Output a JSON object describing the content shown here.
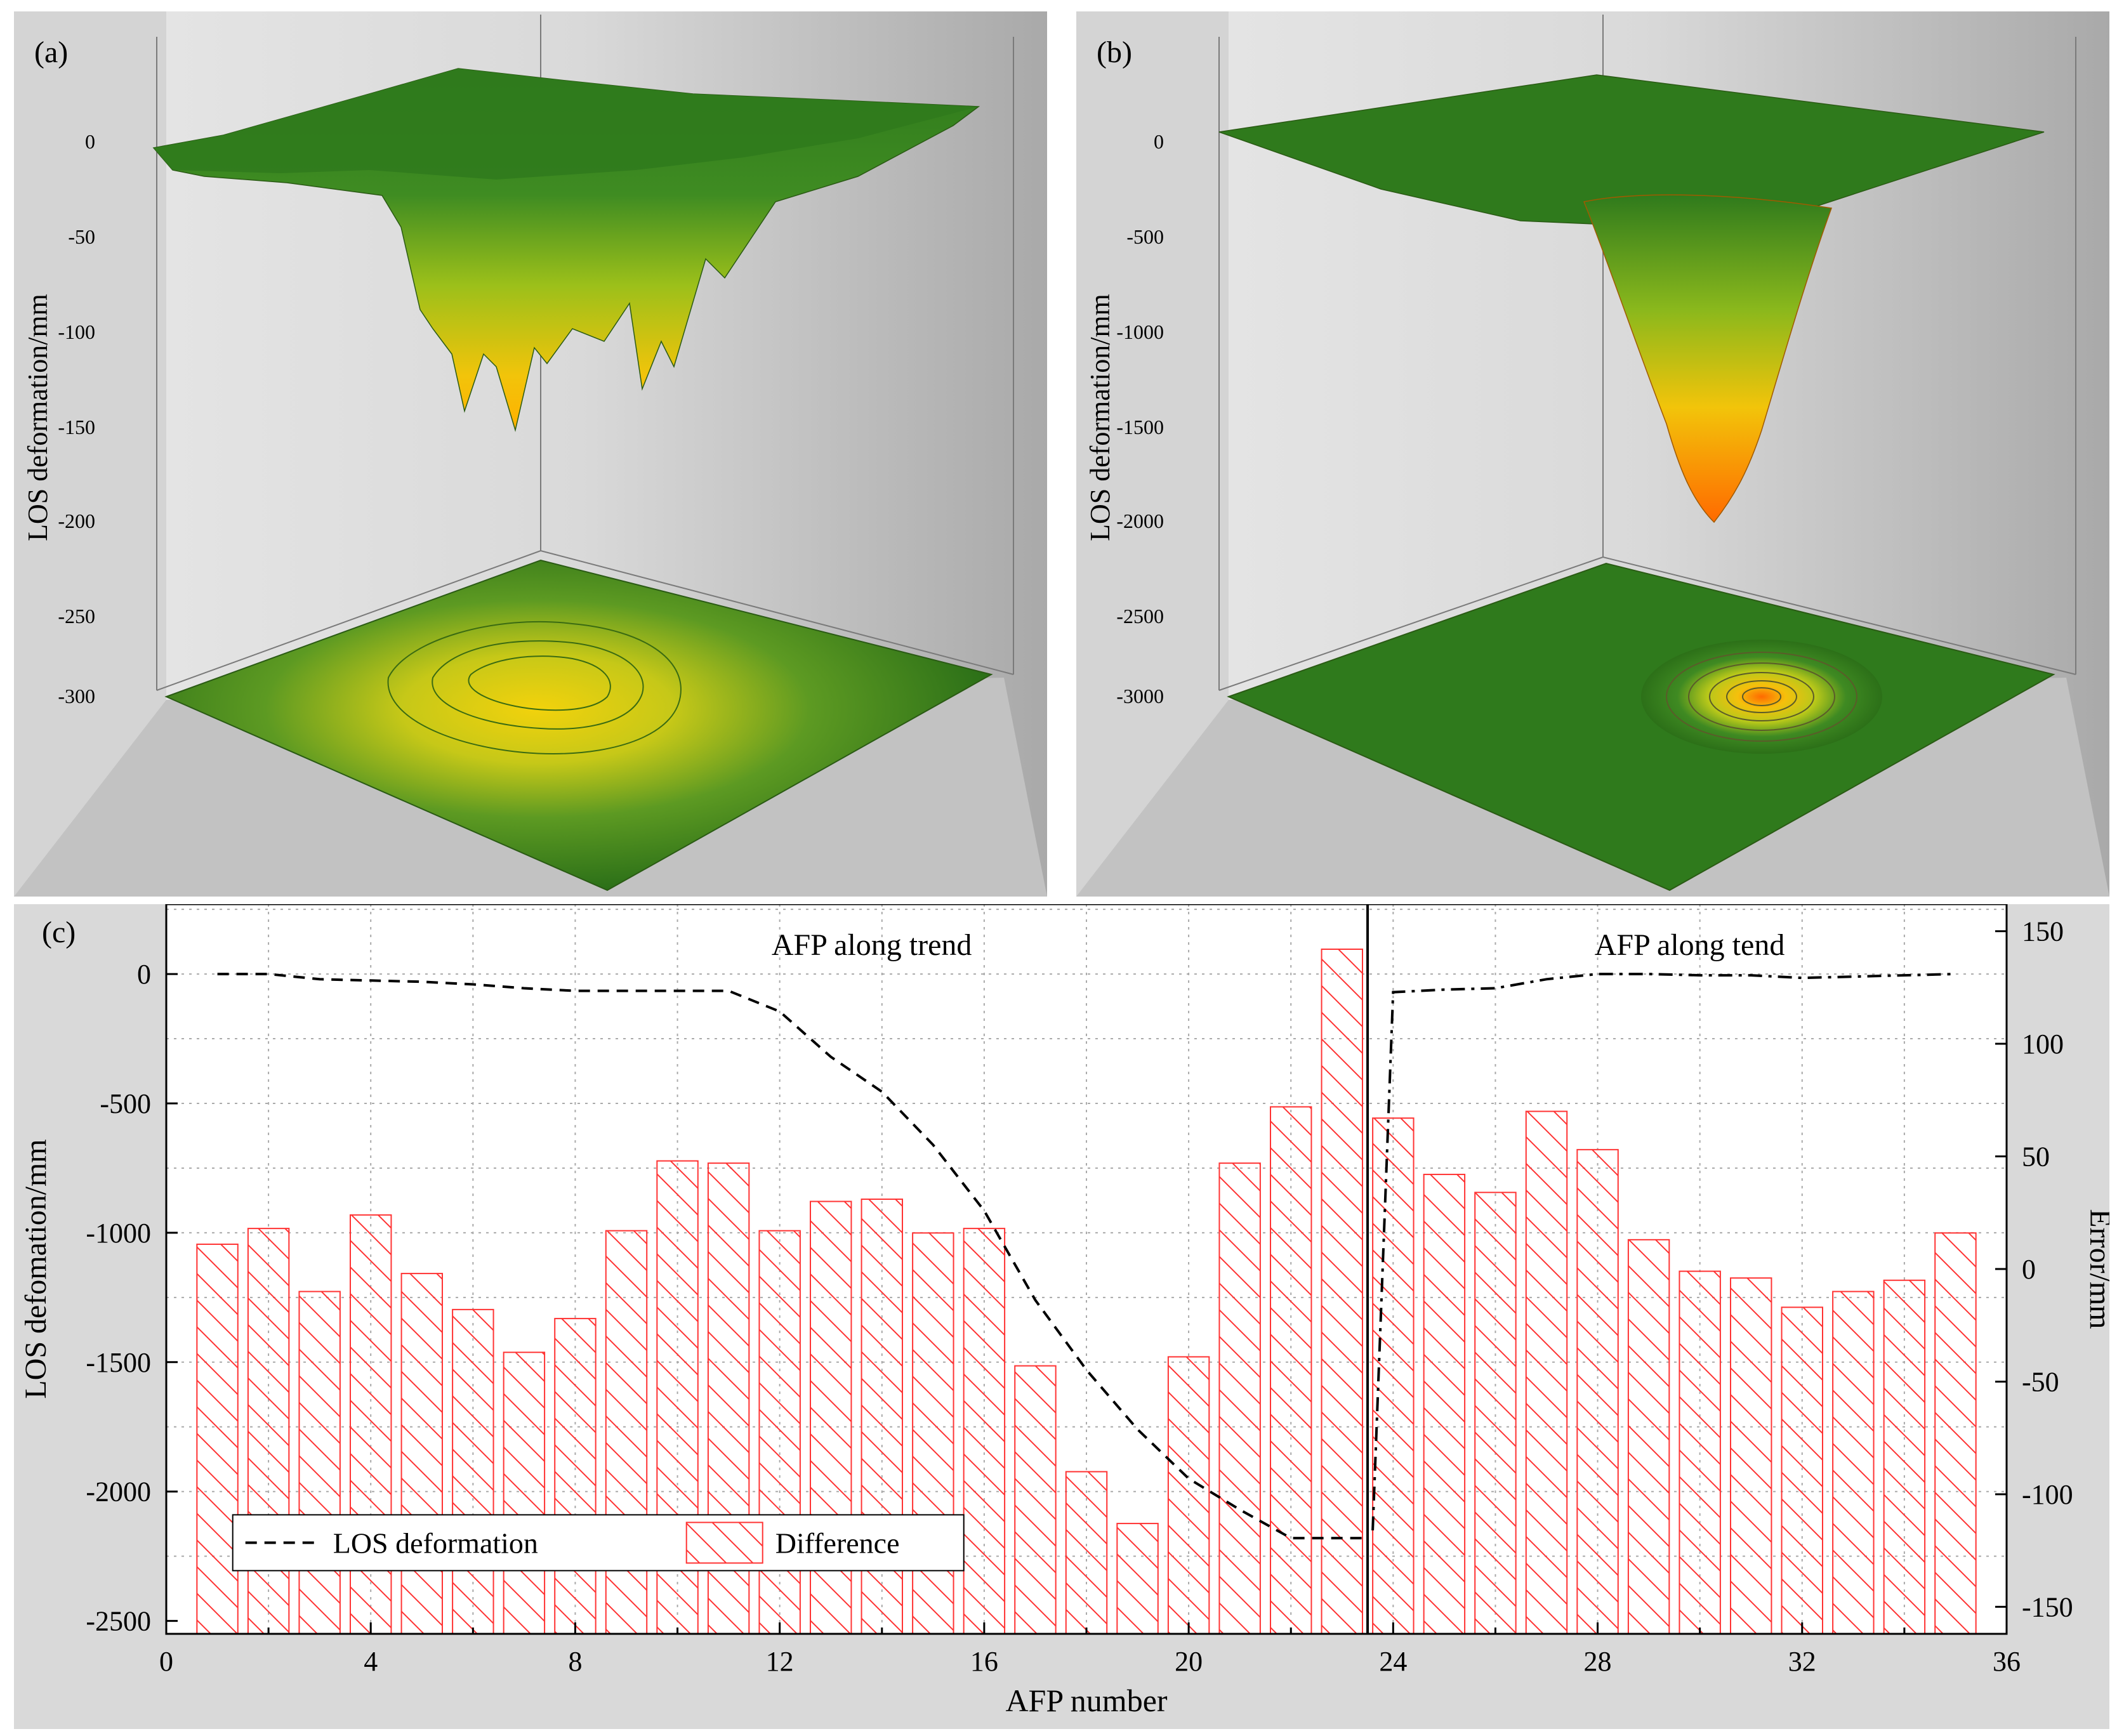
{
  "panel_a": {
    "label": "(a)",
    "zlabel": "LOS deformation/mm",
    "zticks": [
      "0",
      "-50",
      "-100",
      "-150",
      "-200",
      "-250",
      "-300"
    ]
  },
  "panel_b": {
    "label": "(b)",
    "zlabel": "LOS deformation/mm",
    "zticks": [
      "0",
      "-500",
      "-1000",
      "-1500",
      "-2000",
      "-2500",
      "-3000"
    ]
  },
  "colors": {
    "surface_high": "#2f7a1c",
    "surface_mid": "#9cc01a",
    "surface_low": "#f2c40a",
    "surface_min": "#ff6a00",
    "bar_stroke": "#ff3333",
    "line": "#000000"
  },
  "chart_data": {
    "type": "bar",
    "panel_label": "(c)",
    "xlabel": "AFP number",
    "ylabel": "LOS defomation/mm",
    "y2label": "Error/mm",
    "xlim": [
      0,
      36
    ],
    "ylim": [
      -2550,
      270
    ],
    "y2lim": [
      -162,
      162
    ],
    "xticks": [
      0,
      4,
      8,
      12,
      16,
      20,
      24,
      28,
      32,
      36
    ],
    "yticks": [
      0,
      -500,
      -1000,
      -1500,
      -2000,
      -2500
    ],
    "y2ticks": [
      150,
      100,
      50,
      0,
      -50,
      -100,
      -150
    ],
    "grid": true,
    "annotations": [
      "AFP along trend",
      "AFP along tend"
    ],
    "divider_x": 23.5,
    "legend": {
      "position": "bottom-left",
      "entries": [
        "LOS deformation",
        "Difference"
      ]
    },
    "series": [
      {
        "name": "Difference",
        "axis": "right",
        "style": "hatched-bar",
        "x": [
          1,
          2,
          3,
          4,
          5,
          6,
          7,
          8,
          9,
          10,
          11,
          12,
          13,
          14,
          15,
          16,
          17,
          18,
          19,
          20,
          21,
          22,
          23,
          24,
          25,
          26,
          27,
          28,
          29,
          30,
          31,
          32,
          33,
          34,
          35
        ],
        "values": [
          11,
          18,
          -10,
          24,
          -2,
          -18,
          -37,
          -22,
          17,
          48,
          47,
          17,
          30,
          31,
          16,
          18,
          -43,
          -90,
          -113,
          -39,
          47,
          72,
          142,
          67,
          42,
          34,
          70,
          53,
          13,
          -1,
          -4,
          -17,
          -10,
          -5,
          16
        ]
      },
      {
        "name": "LOS deformation",
        "axis": "left",
        "style": "dashed-line",
        "x": [
          1,
          2,
          3,
          4,
          5,
          6,
          7,
          8,
          9,
          10,
          11,
          12,
          13,
          14,
          15,
          16,
          17,
          18,
          19,
          20,
          21,
          22,
          23,
          23.5
        ],
        "values": [
          0,
          0,
          -20,
          -25,
          -30,
          -40,
          -55,
          -65,
          -65,
          -65,
          -65,
          -145,
          -320,
          -455,
          -660,
          -915,
          -1260,
          -1530,
          -1760,
          -1950,
          -2070,
          -2180,
          -2180,
          -2180
        ]
      },
      {
        "name": "LOS deformation (along tend)",
        "axis": "left",
        "style": "dash-dot-line",
        "x": [
          23.6,
          24,
          25,
          26,
          27,
          28,
          29,
          30,
          31,
          32,
          33,
          34,
          35
        ],
        "values": [
          -2150,
          -70,
          -60,
          -55,
          -20,
          0,
          0,
          -5,
          -5,
          -15,
          -10,
          -5,
          0
        ]
      }
    ]
  }
}
